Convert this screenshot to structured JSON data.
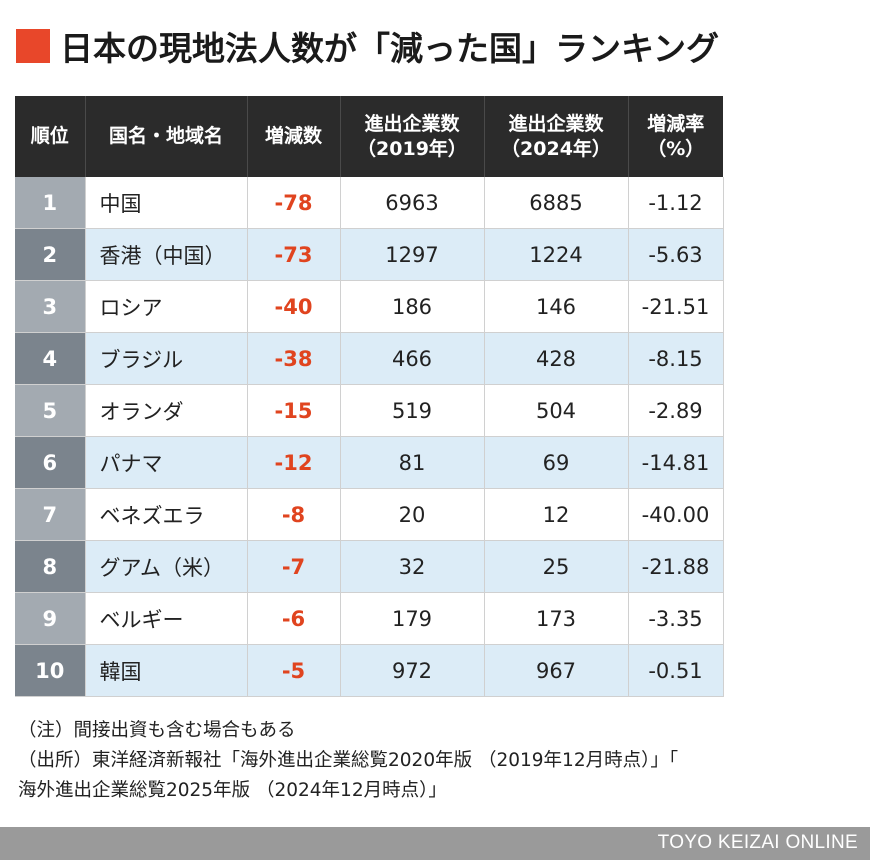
{
  "title": "日本の現地法人数が「減った国」ランキング",
  "table": {
    "headers": {
      "rank": "順位",
      "country": "国名・地域名",
      "change": "増減数",
      "count2019_line1": "進出企業数",
      "count2019_line2": "（2019年）",
      "count2024_line1": "進出企業数",
      "count2024_line2": "（2024年）",
      "rate_line1": "増減率",
      "rate_line2": "（%）"
    },
    "rows": [
      {
        "rank": "1",
        "country": "中国",
        "change": "-78",
        "y2019": "6963",
        "y2024": "6885",
        "rate": "-1.12"
      },
      {
        "rank": "2",
        "country": "香港（中国）",
        "change": "-73",
        "y2019": "1297",
        "y2024": "1224",
        "rate": "-5.63"
      },
      {
        "rank": "3",
        "country": "ロシア",
        "change": "-40",
        "y2019": "186",
        "y2024": "146",
        "rate": "-21.51"
      },
      {
        "rank": "4",
        "country": "ブラジル",
        "change": "-38",
        "y2019": "466",
        "y2024": "428",
        "rate": "-8.15"
      },
      {
        "rank": "5",
        "country": "オランダ",
        "change": "-15",
        "y2019": "519",
        "y2024": "504",
        "rate": "-2.89"
      },
      {
        "rank": "6",
        "country": "パナマ",
        "change": "-12",
        "y2019": "81",
        "y2024": "69",
        "rate": "-14.81"
      },
      {
        "rank": "7",
        "country": "ベネズエラ",
        "change": "-8",
        "y2019": "20",
        "y2024": "12",
        "rate": "-40.00"
      },
      {
        "rank": "8",
        "country": "グアム（米）",
        "change": "-7",
        "y2019": "32",
        "y2024": "25",
        "rate": "-21.88"
      },
      {
        "rank": "9",
        "country": "ベルギー",
        "change": "-6",
        "y2019": "179",
        "y2024": "173",
        "rate": "-3.35"
      },
      {
        "rank": "10",
        "country": "韓国",
        "change": "-5",
        "y2019": "972",
        "y2024": "967",
        "rate": "-0.51"
      }
    ]
  },
  "notes": {
    "line1": "（注）間接出資も含む場合もある",
    "line2": "（出所）東洋経済新報社「海外進出企業総覧2020年版 （2019年12月時点）」「",
    "line3": "海外進出企業総覧2025年版 （2024年12月時点）」"
  },
  "footer": {
    "brand": "TOYO KEIZAI ONLINE"
  },
  "colors": {
    "accent": "#e8472a",
    "header_bg": "#2b2b2b",
    "row_alt": "#dcecf7",
    "change_text": "#e0441f",
    "footer_bg": "#9a9a9a"
  }
}
